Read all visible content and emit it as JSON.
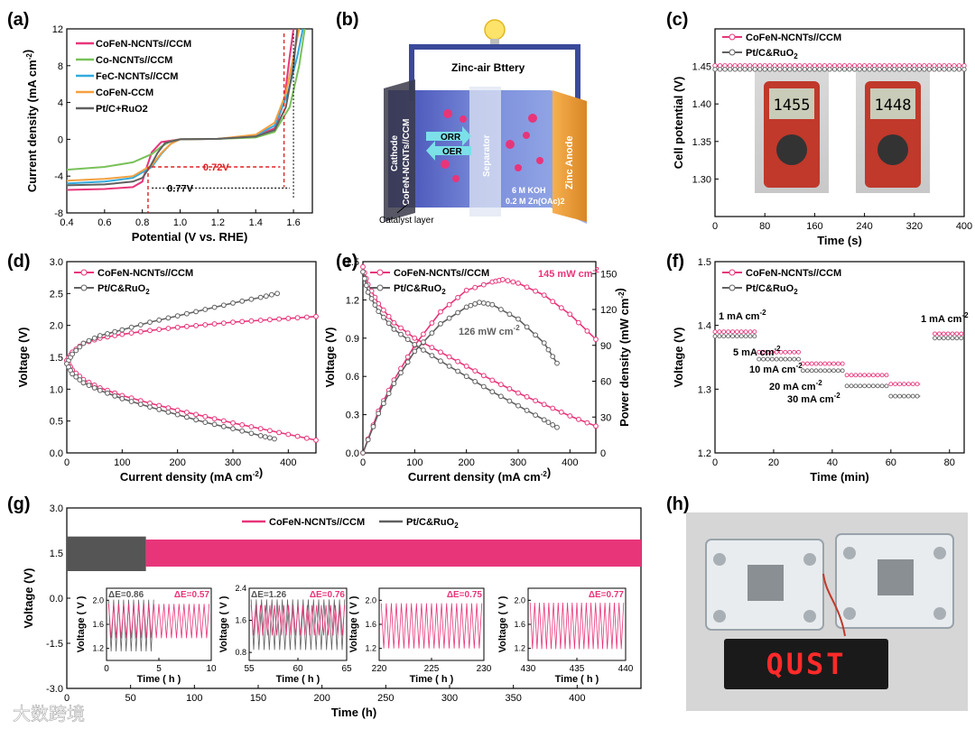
{
  "colors": {
    "cofen_nt": "#e8357a",
    "co_nt": "#79c15a",
    "fec_nt": "#33aadd",
    "cofen_ccm": "#f4a040",
    "ptc": "#606060",
    "annot_red": "#e02020"
  },
  "chart_data": [
    {
      "panel": "(a)",
      "type": "line",
      "xlabel": "Potential (V vs. RHE)",
      "ylabel": "Current density (mA cm-2)",
      "xlim": [
        0.4,
        1.7
      ],
      "ylim": [
        -8,
        12
      ],
      "xticks": [
        "0.4",
        "0.6",
        "0.8",
        "1.0",
        "1.2",
        "1.4",
        "1.6"
      ],
      "yticks": [
        "-8",
        "-4",
        "0",
        "4",
        "8",
        "12"
      ],
      "annotations": [
        "0.72V",
        "0.77V"
      ],
      "series": [
        {
          "name": "CoFeN-NCNTs//CCM",
          "color": "#e8357a",
          "x": [
            0.4,
            0.6,
            0.75,
            0.8,
            0.82,
            0.85,
            0.9,
            1.0,
            1.2,
            1.4,
            1.5,
            1.55,
            1.58,
            1.6
          ],
          "y": [
            -5.5,
            -5.4,
            -5.2,
            -4.6,
            -3.2,
            -1.4,
            -0.3,
            0,
            0.05,
            0.3,
            1.2,
            4.0,
            9.0,
            12.0
          ]
        },
        {
          "name": "Co-NCNTs//CCM",
          "color": "#79c15a",
          "x": [
            0.4,
            0.6,
            0.75,
            0.85,
            0.9,
            0.95,
            1.0,
            1.2,
            1.4,
            1.5,
            1.58,
            1.63,
            1.66
          ],
          "y": [
            -3.3,
            -3.0,
            -2.5,
            -1.6,
            -0.8,
            -0.2,
            0,
            0.05,
            0.2,
            0.8,
            3.5,
            8.0,
            12.0
          ]
        },
        {
          "name": "FeC-NCNTs//CCM",
          "color": "#33aadd",
          "x": [
            0.4,
            0.6,
            0.75,
            0.85,
            0.9,
            0.95,
            1.0,
            1.2,
            1.4,
            1.5,
            1.57,
            1.62,
            1.65
          ],
          "y": [
            -4.8,
            -4.6,
            -4.2,
            -3.0,
            -1.6,
            -0.5,
            0,
            0.05,
            0.4,
            1.5,
            5.0,
            9.0,
            12.0
          ]
        },
        {
          "name": "CoFeN-CCM",
          "color": "#f4a040",
          "x": [
            0.4,
            0.6,
            0.75,
            0.85,
            0.9,
            0.95,
            1.0,
            1.2,
            1.4,
            1.5,
            1.56,
            1.6,
            1.63
          ],
          "y": [
            -4.5,
            -4.3,
            -4.0,
            -2.8,
            -1.5,
            -0.5,
            0,
            0.05,
            0.5,
            1.8,
            5.0,
            9.0,
            12.0
          ]
        },
        {
          "name": "Pt/C+RuO2",
          "color": "#606060",
          "x": [
            0.4,
            0.6,
            0.75,
            0.8,
            0.84,
            0.88,
            0.92,
            1.0,
            1.2,
            1.4,
            1.5,
            1.56,
            1.6,
            1.62
          ],
          "y": [
            -5.0,
            -4.9,
            -4.6,
            -4.2,
            -3.0,
            -1.5,
            -0.4,
            0,
            0.05,
            0.3,
            1.0,
            3.5,
            8.0,
            12.0
          ]
        }
      ]
    },
    {
      "panel": "(c)",
      "type": "line",
      "xlabel": "Time (s)",
      "ylabel": "Cell potential (V)",
      "xlim": [
        0,
        400
      ],
      "ylim": [
        1.25,
        1.5
      ],
      "xticks": [
        "0",
        "80",
        "160",
        "240",
        "320",
        "400"
      ],
      "yticks": [
        "1.30",
        "1.35",
        "1.40",
        "1.45"
      ],
      "series": [
        {
          "name": "CoFeN-NCNTs//CCM",
          "color": "#e8357a",
          "x": [
            0,
            400
          ],
          "y": [
            1.451,
            1.451
          ]
        },
        {
          "name": "Pt/C&RuO2",
          "color": "#606060",
          "x": [
            0,
            400
          ],
          "y": [
            1.446,
            1.446
          ]
        }
      ],
      "photo_readouts": [
        "1455",
        "1448"
      ]
    },
    {
      "panel": "(d)",
      "type": "line",
      "xlabel": "Current density (mA cm-2)",
      "ylabel": "Voltage (V)",
      "xlim": [
        0,
        450
      ],
      "ylim": [
        0,
        3.0
      ],
      "xticks": [
        "0",
        "100",
        "200",
        "300",
        "400"
      ],
      "yticks": [
        "0.0",
        "0.5",
        "1.0",
        "1.5",
        "2.0",
        "2.5",
        "3.0"
      ],
      "series": [
        {
          "name": "CoFeN-NCNTs//CCM charge",
          "color": "#e8357a",
          "x": [
            0,
            10,
            30,
            60,
            100,
            150,
            200,
            250,
            300,
            350,
            400,
            450
          ],
          "y": [
            1.45,
            1.58,
            1.72,
            1.8,
            1.86,
            1.92,
            1.97,
            2.01,
            2.05,
            2.08,
            2.11,
            2.14
          ]
        },
        {
          "name": "CoFeN-NCNTs//CCM discharge",
          "color": "#e8357a",
          "x": [
            0,
            10,
            30,
            60,
            100,
            150,
            200,
            250,
            300,
            350,
            400,
            450
          ],
          "y": [
            1.45,
            1.3,
            1.15,
            1.02,
            0.9,
            0.78,
            0.67,
            0.57,
            0.47,
            0.38,
            0.29,
            0.2
          ]
        },
        {
          "name": "Pt/C&RuO2 charge",
          "color": "#606060",
          "x": [
            0,
            10,
            30,
            60,
            100,
            150,
            200,
            250,
            300,
            350,
            380
          ],
          "y": [
            1.4,
            1.55,
            1.72,
            1.84,
            1.93,
            2.05,
            2.15,
            2.25,
            2.35,
            2.44,
            2.5
          ]
        },
        {
          "name": "Pt/C&RuO2 discharge",
          "color": "#606060",
          "x": [
            0,
            10,
            30,
            60,
            100,
            150,
            200,
            250,
            300,
            350,
            375
          ],
          "y": [
            1.4,
            1.24,
            1.1,
            0.98,
            0.85,
            0.72,
            0.6,
            0.48,
            0.38,
            0.27,
            0.22
          ]
        }
      ]
    },
    {
      "panel": "(e)",
      "type": "line",
      "xlabel": "Current density (mA cm-2)",
      "ylabel": "Voltage (V)",
      "ylabel_right": "Power density (mW cm-2)",
      "xlim": [
        0,
        450
      ],
      "ylim": [
        0,
        1.5
      ],
      "ylim_right": [
        0,
        160
      ],
      "xticks": [
        "0",
        "100",
        "200",
        "300",
        "400"
      ],
      "yticks": [
        "0.0",
        "0.3",
        "0.6",
        "0.9",
        "1.2",
        "1.5"
      ],
      "yticks_right": [
        "0",
        "30",
        "60",
        "90",
        "120",
        "150"
      ],
      "annotations": [
        "145 mW cm-2",
        "126 mW cm-2"
      ],
      "series": [
        {
          "name": "CoFeN-NCNTs//CCM voltage",
          "color": "#e8357a",
          "axis": "left",
          "x": [
            0,
            10,
            30,
            60,
            100,
            150,
            200,
            250,
            300,
            350,
            400,
            450
          ],
          "y": [
            1.46,
            1.32,
            1.17,
            1.02,
            0.9,
            0.79,
            0.68,
            0.57,
            0.47,
            0.38,
            0.29,
            0.21
          ]
        },
        {
          "name": "CoFeN-NCNTs//CCM power",
          "color": "#e8357a",
          "axis": "right",
          "x": [
            0,
            30,
            60,
            100,
            150,
            200,
            250,
            270,
            300,
            350,
            400,
            450
          ],
          "y": [
            0,
            35,
            61,
            90,
            118,
            136,
            143,
            145,
            142,
            132,
            116,
            95
          ]
        },
        {
          "name": "Pt/C&RuO2 voltage",
          "color": "#606060",
          "axis": "left",
          "x": [
            0,
            10,
            30,
            60,
            100,
            150,
            200,
            250,
            300,
            350,
            375
          ],
          "y": [
            1.42,
            1.26,
            1.11,
            0.97,
            0.85,
            0.72,
            0.6,
            0.48,
            0.37,
            0.26,
            0.2
          ]
        },
        {
          "name": "Pt/C&RuO2 power",
          "color": "#606060",
          "axis": "right",
          "x": [
            0,
            30,
            60,
            100,
            150,
            200,
            225,
            250,
            300,
            350,
            375
          ],
          "y": [
            0,
            33,
            58,
            85,
            108,
            122,
            126,
            124,
            112,
            92,
            75
          ]
        }
      ]
    },
    {
      "panel": "(f)",
      "type": "line",
      "xlabel": "Time (min)",
      "ylabel": "Voltage (V)",
      "xlim": [
        0,
        85
      ],
      "ylim": [
        1.2,
        1.5
      ],
      "xticks": [
        "0",
        "20",
        "40",
        "60",
        "80"
      ],
      "yticks": [
        "1.2",
        "1.3",
        "1.4",
        "1.5"
      ],
      "step_labels": [
        "1 mA cm-2",
        "5 mA cm-2",
        "10 mA cm-2",
        "20 mA cm-2",
        "30 mA cm-2",
        "1 mA cm-2"
      ],
      "series": [
        {
          "name": "CoFeN-NCNTs//CCM",
          "color": "#e8357a",
          "segments": [
            [
              0,
              14,
              1.39
            ],
            [
              15,
              29,
              1.358
            ],
            [
              30,
              44,
              1.34
            ],
            [
              45,
              59,
              1.322
            ],
            [
              60,
              70,
              1.308
            ],
            [
              75,
              85,
              1.387
            ]
          ]
        },
        {
          "name": "Pt/C&RuO2",
          "color": "#606060",
          "segments": [
            [
              0,
              14,
              1.383
            ],
            [
              15,
              29,
              1.347
            ],
            [
              30,
              44,
              1.329
            ],
            [
              45,
              59,
              1.305
            ],
            [
              60,
              70,
              1.289
            ],
            [
              75,
              85,
              1.38
            ]
          ]
        }
      ]
    },
    {
      "panel": "(g)",
      "type": "line",
      "xlabel": "Time (h)",
      "ylabel": "Voltage (V)",
      "xlim": [
        0,
        450
      ],
      "ylim": [
        -3.0,
        3.0
      ],
      "xticks": [
        "0",
        "50",
        "100",
        "150",
        "200",
        "250",
        "300",
        "350",
        "400"
      ],
      "yticks": [
        "-3.0",
        "-1.5",
        "0.0",
        "1.5",
        "3.0"
      ],
      "series": [
        {
          "name": "CoFeN-NCNTs//CCM",
          "color": "#e8357a",
          "band": [
            0,
            450,
            1.05,
            1.95
          ]
        },
        {
          "name": "Pt/C&RuO2",
          "color": "#606060",
          "band": [
            0,
            62,
            0.9,
            2.05
          ]
        }
      ],
      "insets": [
        {
          "xlim": [
            0,
            10
          ],
          "xticks": [
            "0",
            "5",
            "10"
          ],
          "ylim": [
            1.0,
            2.2
          ],
          "yticks": [
            "1.2",
            "1.6",
            "2.0"
          ],
          "de_grey": "ΔE=0.86",
          "de_pink": "ΔE=0.57",
          "pink_band": [
            1.37,
            1.94
          ],
          "grey_band": [
            1.15,
            2.01
          ]
        },
        {
          "xlim": [
            55,
            65
          ],
          "xticks": [
            "55",
            "60",
            "65"
          ],
          "ylim": [
            0.6,
            2.4
          ],
          "yticks": [
            "0.8",
            "1.6",
            "2.4"
          ],
          "de_grey": "ΔE=1.26",
          "de_pink": "ΔE=0.76",
          "pink_band": [
            1.22,
            1.98
          ],
          "grey_band": [
            0.86,
            2.12
          ]
        },
        {
          "xlim": [
            220,
            230
          ],
          "xticks": [
            "220",
            "225",
            "230"
          ],
          "ylim": [
            1.0,
            2.2
          ],
          "yticks": [
            "1.2",
            "1.6",
            "2.0"
          ],
          "de_grey": "",
          "de_pink": "ΔE=0.75",
          "pink_band": [
            1.2,
            1.95
          ],
          "grey_band": null
        },
        {
          "xlim": [
            430,
            440
          ],
          "xticks": [
            "430",
            "435",
            "440"
          ],
          "ylim": [
            1.0,
            2.2
          ],
          "yticks": [
            "1.2",
            "1.6",
            "2.0"
          ],
          "de_grey": "",
          "de_pink": "ΔE=0.77",
          "pink_band": [
            1.19,
            1.96
          ],
          "grey_band": null
        }
      ]
    }
  ],
  "labels": {
    "panel_a": "(a)",
    "panel_b": "(b)",
    "panel_c": "(c)",
    "panel_d": "(d)",
    "panel_e": "(e)",
    "panel_f": "(f)",
    "panel_g": "(g)",
    "panel_h": "(h)",
    "legend_a": [
      "CoFeN-NCNTs//CCM",
      "Co-NCNTs//CCM",
      "FeC-NCNTs//CCM",
      "CoFeN-CCM",
      "Pt/C+RuO2"
    ],
    "legend_pair_1": "CoFeN-NCNTs//CCM",
    "legend_pair_2": "Pt/C&RuO2",
    "b_title": "Zinc-air Bttery",
    "b_cathode": "Cathode",
    "b_catalyst_stack": "CoFeN-NCNTs//CCM",
    "b_orr": "ORR",
    "b_oer": "OER",
    "b_separator": "Separator",
    "b_electrolyte_1": "6 M KOH",
    "b_electrolyte_2": "0.2 M Zn(OAc)2",
    "b_anode": "Zinc Anode",
    "b_catalyst_layer": "Catalyst layer",
    "c_meter_1": "1455",
    "c_meter_2": "1448",
    "h_led_text": "QUST",
    "watermark": "大数跨境"
  }
}
